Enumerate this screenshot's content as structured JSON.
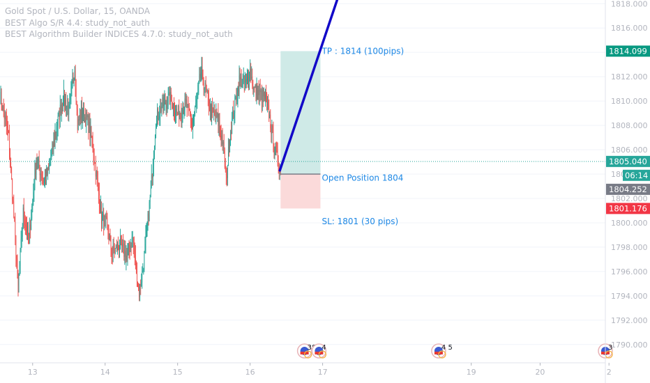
{
  "legend": {
    "symbol": "Gold Spot / U.S. Dollar, 15, OANDA",
    "study1": "BEST Algo S/R 4.4: study_not_auth",
    "study2": "BEST Algorithm Builder INDICES 4.7.0: study_not_auth"
  },
  "colors": {
    "up": "#26a69a",
    "down": "#ef5350",
    "tp_zone": "#cfeae7",
    "sl_zone": "#fbdada",
    "trend_line": "#1208c8",
    "label_text": "#1e88e5",
    "current_price_tag": "#26a69a",
    "tp_tag": "#089981",
    "sl_tag": "#f23645",
    "gray_tag": "#787b86"
  },
  "axis": {
    "y_ticks": [
      "1790.000",
      "1792.000",
      "1794.000",
      "1796.000",
      "1798.000",
      "1800.000",
      "1802.000",
      "1804.000",
      "1806.000",
      "1808.000",
      "1810.000",
      "1812.000",
      "1814.000",
      "1816.000",
      "1818.000"
    ],
    "x_ticks": [
      "13",
      "14",
      "15",
      "16",
      "17",
      "19",
      "20",
      "2"
    ]
  },
  "price_tags": {
    "tp": "1814.099",
    "current": "1805.040",
    "countdown": "06:14",
    "last": "1804.252",
    "sl": "1801.176"
  },
  "annotations": {
    "tp_label": "TP : 1814 (100pips)",
    "open_label": "Open Position 1804",
    "sl_label": "SL: 1801 (30 pips)"
  },
  "events": [
    {
      "day": "16.75",
      "count": "383"
    },
    {
      "day": "16.95",
      "count": "4"
    },
    {
      "day": "18.6",
      "count": "4 5"
    },
    {
      "day": "20.9",
      "count": "3"
    }
  ],
  "chart_data": {
    "type": "candlestick",
    "title": "Gold Spot / U.S. Dollar, 15, OANDA",
    "ylim": [
      1788.5,
      1818.3
    ],
    "xlim": [
      12.55,
      20.9
    ],
    "current_price": 1805.04,
    "position": {
      "entry": 1804.0,
      "take_profit": 1814.1,
      "stop_loss": 1801.176,
      "start_day": 16.42,
      "end_day": 16.97
    },
    "trend_line": {
      "start": [
        16.41,
        1804.3
      ],
      "end": [
        17.2,
        1818.3
      ]
    },
    "anchors": [
      [
        12.55,
        1810.5
      ],
      [
        12.67,
        1807.0
      ],
      [
        12.73,
        1801.5
      ],
      [
        12.8,
        1794.6
      ],
      [
        12.87,
        1800.8
      ],
      [
        12.95,
        1798.7
      ],
      [
        13.05,
        1805.2
      ],
      [
        13.15,
        1803.5
      ],
      [
        13.22,
        1804.2
      ],
      [
        13.3,
        1807.0
      ],
      [
        13.42,
        1810.4
      ],
      [
        13.5,
        1809.2
      ],
      [
        13.58,
        1812.8
      ],
      [
        13.62,
        1808.0
      ],
      [
        13.67,
        1809.0
      ],
      [
        13.75,
        1808.5
      ],
      [
        13.82,
        1806.8
      ],
      [
        13.88,
        1803.9
      ],
      [
        13.95,
        1800.4
      ],
      [
        14.02,
        1799.8
      ],
      [
        14.1,
        1797.5
      ],
      [
        14.2,
        1798.2
      ],
      [
        14.3,
        1797.2
      ],
      [
        14.38,
        1798.8
      ],
      [
        14.43,
        1795.8
      ],
      [
        14.47,
        1794.3
      ],
      [
        14.52,
        1796.2
      ],
      [
        14.58,
        1799.5
      ],
      [
        14.63,
        1802.6
      ],
      [
        14.7,
        1808.5
      ],
      [
        14.78,
        1809.6
      ],
      [
        14.9,
        1810.2
      ],
      [
        15.0,
        1808.9
      ],
      [
        15.12,
        1809.8
      ],
      [
        15.2,
        1807.8
      ],
      [
        15.26,
        1810.0
      ],
      [
        15.32,
        1812.4
      ],
      [
        15.38,
        1811.0
      ],
      [
        15.45,
        1809.3
      ],
      [
        15.55,
        1808.5
      ],
      [
        15.62,
        1806.8
      ],
      [
        15.67,
        1803.4
      ],
      [
        15.72,
        1807.2
      ],
      [
        15.78,
        1809.4
      ],
      [
        15.85,
        1811.7
      ],
      [
        15.95,
        1811.4
      ],
      [
        16.0,
        1812.5
      ],
      [
        16.05,
        1811.0
      ],
      [
        16.12,
        1810.6
      ],
      [
        16.2,
        1810.3
      ],
      [
        16.26,
        1809.0
      ],
      [
        16.33,
        1806.2
      ],
      [
        16.39,
        1804.8
      ],
      [
        16.42,
        1804.3
      ]
    ]
  }
}
